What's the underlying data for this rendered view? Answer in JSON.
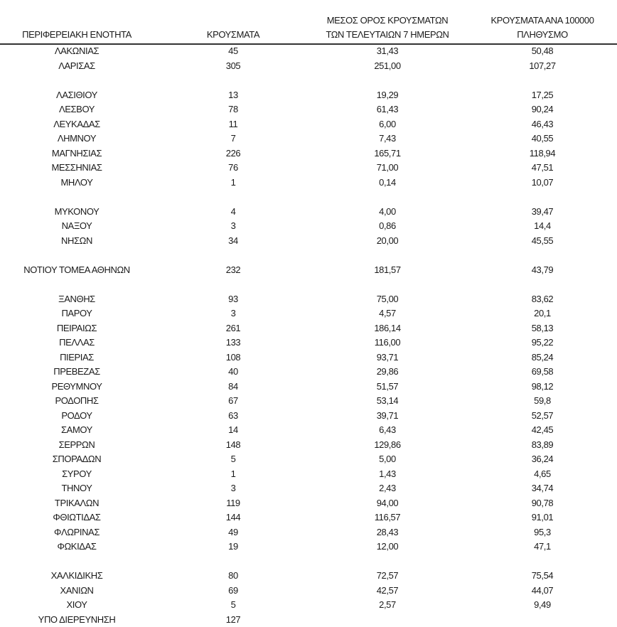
{
  "headers": {
    "region": "ΠΕΡΙΦΕΡΕΙΑΚΗ ΕΝΟΤΗΤΑ",
    "cases": "ΚΡΟΥΣΜΑΤΑ",
    "avg7_line1": "ΜΕΣΟΣ ΟΡΟΣ ΚΡΟΥΣΜΑΤΩΝ",
    "avg7_line2": "ΤΩΝ ΤΕΛΕΥΤΑΙΩΝ 7 ΗΜΕΡΩΝ",
    "per100k_line1": "ΚΡΟΥΣΜΑΤΑ ΑΝΑ 100000",
    "per100k_line2": "ΠΛΗΘΥΣΜΟ"
  },
  "rows": [
    {
      "region": "ΛΑΚΩΝΙΑΣ",
      "cases": "45",
      "avg7": "31,43",
      "per100k": "50,48"
    },
    {
      "region": "ΛΑΡΙΣΑΣ",
      "cases": "305",
      "avg7": "251,00",
      "per100k": "107,27"
    },
    null,
    {
      "region": "ΛΑΣΙΘΙΟΥ",
      "cases": "13",
      "avg7": "19,29",
      "per100k": "17,25"
    },
    {
      "region": "ΛΕΣΒΟΥ",
      "cases": "78",
      "avg7": "61,43",
      "per100k": "90,24"
    },
    {
      "region": "ΛΕΥΚΑΔΑΣ",
      "cases": "11",
      "avg7": "6,00",
      "per100k": "46,43"
    },
    {
      "region": "ΛΗΜΝΟΥ",
      "cases": "7",
      "avg7": "7,43",
      "per100k": "40,55"
    },
    {
      "region": "ΜΑΓΝΗΣΙΑΣ",
      "cases": "226",
      "avg7": "165,71",
      "per100k": "118,94"
    },
    {
      "region": "ΜΕΣΣΗΝΙΑΣ",
      "cases": "76",
      "avg7": "71,00",
      "per100k": "47,51"
    },
    {
      "region": "ΜΗΛΟΥ",
      "cases": "1",
      "avg7": "0,14",
      "per100k": "10,07"
    },
    null,
    {
      "region": "ΜΥΚΟΝΟΥ",
      "cases": "4",
      "avg7": "4,00",
      "per100k": "39,47"
    },
    {
      "region": "ΝΑΞΟΥ",
      "cases": "3",
      "avg7": "0,86",
      "per100k": "14,4"
    },
    {
      "region": "ΝΗΣΩΝ",
      "cases": "34",
      "avg7": "20,00",
      "per100k": "45,55"
    },
    null,
    {
      "region": "ΝΟΤΙΟΥ ΤΟΜΕΑ ΑΘΗΝΩΝ",
      "cases": "232",
      "avg7": "181,57",
      "per100k": "43,79"
    },
    null,
    {
      "region": "ΞΑΝΘΗΣ",
      "cases": "93",
      "avg7": "75,00",
      "per100k": "83,62"
    },
    {
      "region": "ΠΑΡΟΥ",
      "cases": "3",
      "avg7": "4,57",
      "per100k": "20,1"
    },
    {
      "region": "ΠΕΙΡΑΙΩΣ",
      "cases": "261",
      "avg7": "186,14",
      "per100k": "58,13"
    },
    {
      "region": "ΠΕΛΛΑΣ",
      "cases": "133",
      "avg7": "116,00",
      "per100k": "95,22"
    },
    {
      "region": "ΠΙΕΡΙΑΣ",
      "cases": "108",
      "avg7": "93,71",
      "per100k": "85,24"
    },
    {
      "region": "ΠΡΕΒΕΖΑΣ",
      "cases": "40",
      "avg7": "29,86",
      "per100k": "69,58"
    },
    {
      "region": "ΡΕΘΥΜΝΟΥ",
      "cases": "84",
      "avg7": "51,57",
      "per100k": "98,12"
    },
    {
      "region": "ΡΟΔΟΠΗΣ",
      "cases": "67",
      "avg7": "53,14",
      "per100k": "59,8"
    },
    {
      "region": "ΡΟΔΟΥ",
      "cases": "63",
      "avg7": "39,71",
      "per100k": "52,57"
    },
    {
      "region": "ΣΑΜΟΥ",
      "cases": "14",
      "avg7": "6,43",
      "per100k": "42,45"
    },
    {
      "region": "ΣΕΡΡΩΝ",
      "cases": "148",
      "avg7": "129,86",
      "per100k": "83,89"
    },
    {
      "region": "ΣΠΟΡΑΔΩΝ",
      "cases": "5",
      "avg7": "5,00",
      "per100k": "36,24"
    },
    {
      "region": "ΣΥΡΟΥ",
      "cases": "1",
      "avg7": "1,43",
      "per100k": "4,65"
    },
    {
      "region": "ΤΗΝΟΥ",
      "cases": "3",
      "avg7": "2,43",
      "per100k": "34,74"
    },
    {
      "region": "ΤΡΙΚΑΛΩΝ",
      "cases": "119",
      "avg7": "94,00",
      "per100k": "90,78"
    },
    {
      "region": "ΦΘΙΩΤΙΔΑΣ",
      "cases": "144",
      "avg7": "116,57",
      "per100k": "91,01"
    },
    {
      "region": "ΦΛΩΡΙΝΑΣ",
      "cases": "49",
      "avg7": "28,43",
      "per100k": "95,3"
    },
    {
      "region": "ΦΩΚΙΔΑΣ",
      "cases": "19",
      "avg7": "12,00",
      "per100k": "47,1"
    },
    null,
    {
      "region": "ΧΑΛΚΙΔΙΚΗΣ",
      "cases": "80",
      "avg7": "72,57",
      "per100k": "75,54"
    },
    {
      "region": "ΧΑΝΙΩΝ",
      "cases": "69",
      "avg7": "42,57",
      "per100k": "44,07"
    },
    {
      "region": "ΧΙΟΥ",
      "cases": "5",
      "avg7": "2,57",
      "per100k": "9,49"
    },
    {
      "region": "ΥΠΟ ΔΙΕΡΕΥΝΗΣΗ",
      "cases": "127",
      "avg7": "",
      "per100k": ""
    }
  ]
}
